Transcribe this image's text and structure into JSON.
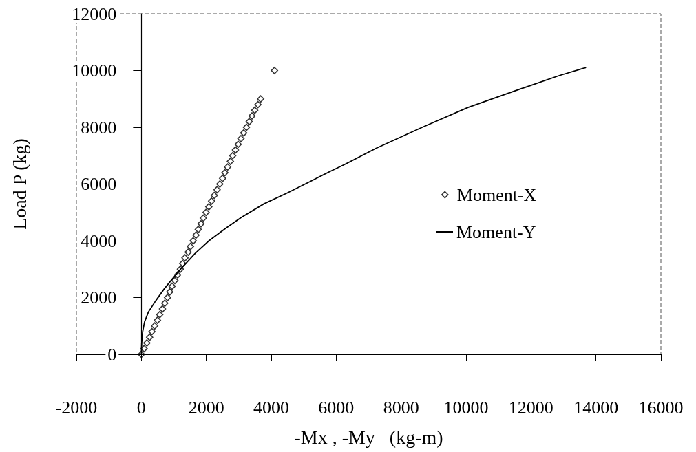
{
  "chart_data": {
    "type": "scatter",
    "xlabel": "-Mx , -My   (kg-m)",
    "ylabel": "Load P (kg)",
    "xlim": [
      -2000,
      16000
    ],
    "xticks": [
      -2000,
      0,
      2000,
      4000,
      6000,
      8000,
      10000,
      12000,
      14000,
      16000
    ],
    "ylim": [
      0,
      12000
    ],
    "yticks": [
      0,
      2000,
      4000,
      6000,
      8000,
      10000,
      12000
    ],
    "legend": "right",
    "series": [
      {
        "name": "Moment-X",
        "marker": "diamond",
        "color": "#000000",
        "x": [
          0,
          85,
          170,
          254,
          325,
          410,
          495,
          566,
          650,
          721,
          806,
          876,
          947,
          1032,
          1117,
          1202,
          1272,
          1343,
          1442,
          1512,
          1597,
          1682,
          1753,
          1837,
          1908,
          1993,
          2078,
          2163,
          2247,
          2332,
          2417,
          2502,
          2572,
          2657,
          2742,
          2813,
          2897,
          2982,
          3067,
          3152,
          3237,
          3322,
          3407,
          3491,
          3590,
          3675,
          4100
        ],
        "values": [
          0,
          200,
          400,
          600,
          800,
          1000,
          1200,
          1400,
          1600,
          1800,
          2000,
          2200,
          2400,
          2600,
          2800,
          3000,
          3200,
          3400,
          3600,
          3800,
          4000,
          4200,
          4400,
          4600,
          4800,
          5000,
          5200,
          5400,
          5600,
          5800,
          6000,
          6200,
          6400,
          6600,
          6800,
          7000,
          7200,
          7400,
          7600,
          7800,
          8000,
          8200,
          8400,
          8600,
          8800,
          9000,
          10000
        ]
      },
      {
        "name": "Moment-Y",
        "type": "line",
        "marker": "none",
        "line_style": "solid",
        "color": "#000000",
        "x": [
          0,
          10,
          40,
          100,
          220,
          450,
          700,
          950,
          1190,
          1650,
          2080,
          2570,
          3070,
          3770,
          4480,
          5180,
          5820,
          6240,
          7230,
          8650,
          10060,
          11470,
          12890,
          13680
        ],
        "values": [
          0,
          400,
          800,
          1150,
          1500,
          1900,
          2300,
          2650,
          2980,
          3550,
          4000,
          4420,
          4820,
          5300,
          5680,
          6080,
          6450,
          6680,
          7260,
          8000,
          8700,
          9270,
          9830,
          10100
        ]
      }
    ]
  }
}
